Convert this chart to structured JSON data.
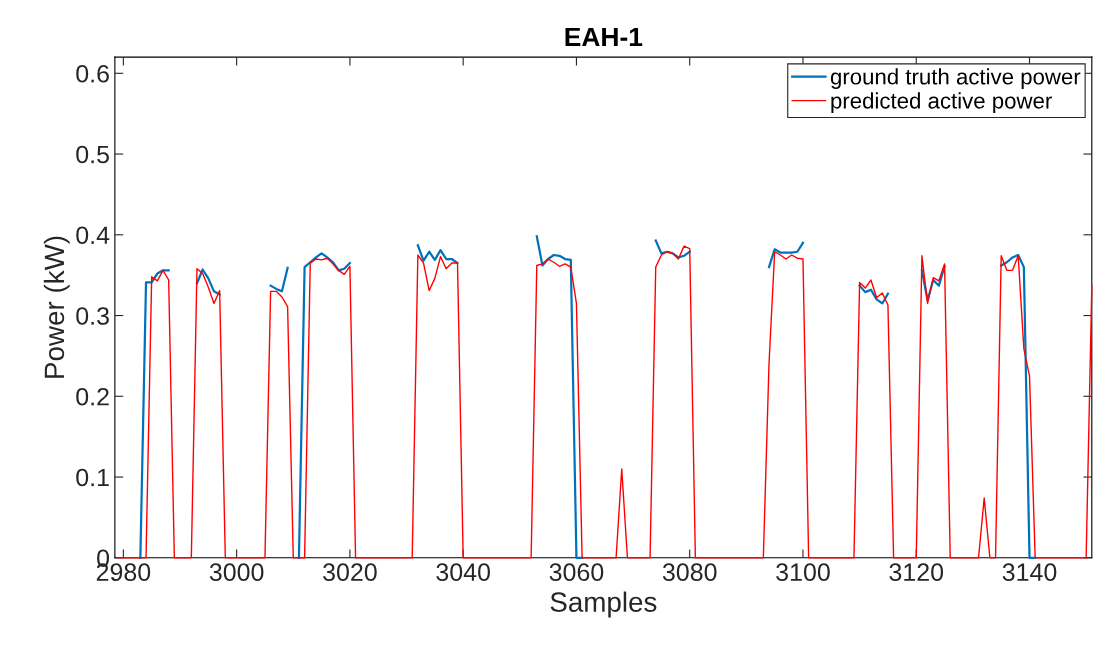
{
  "chart_data": {
    "type": "line",
    "title": "EAH-1",
    "xlabel": "Samples",
    "ylabel": "Power (kW)",
    "x": [
      2979,
      2980,
      2981,
      2982,
      2983,
      2984,
      2985,
      2986,
      2987,
      2988,
      2989,
      2990,
      2991,
      2992,
      2993,
      2994,
      2995,
      2996,
      2997,
      2998,
      2999,
      3000,
      3001,
      3002,
      3003,
      3004,
      3005,
      3006,
      3007,
      3008,
      3009,
      3010,
      3011,
      3012,
      3013,
      3014,
      3015,
      3016,
      3017,
      3018,
      3019,
      3020,
      3021,
      3022,
      3023,
      3024,
      3025,
      3026,
      3027,
      3028,
      3029,
      3030,
      3031,
      3032,
      3033,
      3034,
      3035,
      3036,
      3037,
      3038,
      3039,
      3040,
      3041,
      3042,
      3043,
      3044,
      3045,
      3046,
      3047,
      3048,
      3049,
      3050,
      3051,
      3052,
      3053,
      3054,
      3055,
      3056,
      3057,
      3058,
      3059,
      3060,
      3061,
      3062,
      3063,
      3064,
      3065,
      3066,
      3067,
      3068,
      3069,
      3070,
      3071,
      3072,
      3073,
      3074,
      3075,
      3076,
      3077,
      3078,
      3079,
      3080,
      3081,
      3082,
      3083,
      3084,
      3085,
      3086,
      3087,
      3088,
      3089,
      3090,
      3091,
      3092,
      3093,
      3094,
      3095,
      3096,
      3097,
      3098,
      3099,
      3100,
      3101,
      3102,
      3103,
      3104,
      3105,
      3106,
      3107,
      3108,
      3109,
      3110,
      3111,
      3112,
      3113,
      3114,
      3115,
      3116,
      3117,
      3118,
      3119,
      3120,
      3121,
      3122,
      3123,
      3124,
      3125,
      3126,
      3127,
      3128,
      3129,
      3130,
      3131,
      3132,
      3133,
      3134,
      3135,
      3136,
      3137,
      3138,
      3139,
      3140,
      3141,
      3142,
      3143,
      3144,
      3145,
      3146,
      3147,
      3148,
      3149,
      3150,
      3151
    ],
    "series": [
      {
        "name": "ground truth active power",
        "color": "#0072bd",
        "values": [
          null,
          null,
          null,
          null,
          0,
          0.341,
          0.341,
          0.352,
          0.356,
          0.356,
          null,
          null,
          null,
          null,
          0.34,
          0.357,
          0.346,
          0.33,
          0.326,
          null,
          null,
          null,
          null,
          null,
          null,
          null,
          null,
          0.337,
          0.333,
          0.33,
          0.359,
          null,
          0,
          0.36,
          0.366,
          0.372,
          0.377,
          0.372,
          0.366,
          0.356,
          0.358,
          0.365,
          null,
          null,
          null,
          null,
          null,
          null,
          null,
          null,
          null,
          null,
          null,
          0.387,
          0.368,
          0.379,
          0.369,
          0.381,
          0.37,
          0.37,
          0.365,
          null,
          null,
          null,
          null,
          null,
          null,
          null,
          null,
          null,
          null,
          null,
          null,
          null,
          0.398,
          0.362,
          0.37,
          0.375,
          0.374,
          0.37,
          0.369,
          0,
          0,
          null,
          null,
          null,
          null,
          null,
          null,
          null,
          null,
          null,
          null,
          null,
          null,
          0.393,
          0.377,
          0.379,
          0.377,
          0.372,
          0.374,
          0.379,
          null,
          null,
          null,
          null,
          null,
          null,
          null,
          null,
          null,
          null,
          null,
          null,
          null,
          0.36,
          0.382,
          0.378,
          0.378,
          0.378,
          0.379,
          0.39,
          null,
          null,
          null,
          null,
          null,
          null,
          null,
          null,
          null,
          0.337,
          0.329,
          0.332,
          0.32,
          0.315,
          0.327,
          null,
          null,
          null,
          null,
          null,
          0.356,
          0.319,
          0.344,
          0.337,
          0.361,
          null,
          null,
          null,
          null,
          null,
          null,
          null,
          null,
          null,
          0.362,
          0.366,
          0.372,
          0.375,
          0.36,
          0,
          0,
          null,
          null,
          null,
          null,
          null,
          null,
          null,
          null,
          null,
          null
        ]
      },
      {
        "name": "predicted active power",
        "color": "#ff0000",
        "values": [
          0,
          0,
          0,
          0,
          0,
          0,
          0.348,
          0.343,
          0.356,
          0.344,
          0,
          0,
          0,
          0,
          0.358,
          0.352,
          0.335,
          0.315,
          0.331,
          0,
          0,
          0,
          0,
          0,
          0,
          0,
          0,
          0.33,
          0.33,
          0.323,
          0.311,
          0,
          0,
          0,
          0.365,
          0.37,
          0.369,
          0.371,
          0.364,
          0.356,
          0.351,
          0.361,
          0,
          0,
          0,
          0,
          0,
          0,
          0,
          0,
          0,
          0,
          0,
          0.375,
          0.365,
          0.331,
          0.346,
          0.373,
          0.358,
          0.365,
          0.365,
          0,
          0,
          0,
          0,
          0,
          0,
          0,
          0,
          0,
          0,
          0,
          0,
          0,
          0.362,
          0.364,
          0.37,
          0.366,
          0.361,
          0.364,
          0.36,
          0.315,
          0,
          0,
          0,
          0,
          0,
          0,
          0,
          0.11,
          0,
          0,
          0,
          0,
          0,
          0.36,
          0.375,
          0.379,
          0.377,
          0.37,
          0.386,
          0.383,
          0,
          0,
          0,
          0,
          0,
          0,
          0,
          0,
          0,
          0,
          0,
          0,
          0,
          0.24,
          0.379,
          0.375,
          0.37,
          0.375,
          0.371,
          0.37,
          0,
          0,
          0,
          0,
          0,
          0,
          0,
          0,
          0,
          0.341,
          0.334,
          0.344,
          0.322,
          0.328,
          0.313,
          0,
          0,
          0,
          0,
          0,
          0.374,
          0.315,
          0.347,
          0.343,
          0.364,
          0,
          0,
          0,
          0,
          0,
          0,
          0.074,
          0,
          0,
          0.374,
          0.356,
          0.356,
          0.374,
          0.259,
          0.225,
          0,
          0,
          0,
          0,
          0,
          0,
          0,
          0,
          0,
          0,
          0.337
        ]
      }
    ],
    "xlim": [
      2978.5,
      3151
    ],
    "xticks": [
      2980,
      3000,
      3020,
      3040,
      3060,
      3080,
      3100,
      3120,
      3140
    ],
    "ylim": [
      0,
      0.62
    ],
    "yticks": [
      0,
      0.1,
      0.2,
      0.3,
      0.4,
      0.5,
      0.6
    ],
    "grid": false,
    "legend": "top right"
  }
}
